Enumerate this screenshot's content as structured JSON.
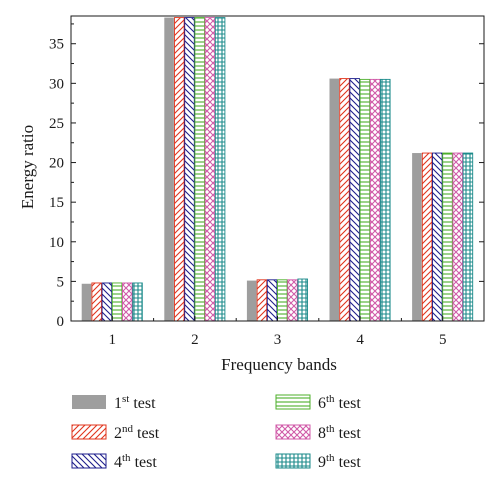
{
  "chart_data": {
    "type": "bar",
    "xlabel": "Frequency bands",
    "ylabel": "Energy ratio",
    "categories": [
      "1",
      "2",
      "3",
      "4",
      "5"
    ],
    "ylim": [
      0,
      38.5
    ],
    "yticks": [
      "0",
      "5",
      "10",
      "15",
      "20",
      "25",
      "30",
      "35"
    ],
    "legend_placement": "bottom, two columns",
    "series": [
      {
        "name": "1st test",
        "name_base": "1",
        "name_sup": "st",
        "name_suffix": " test",
        "pattern": "solid",
        "color": "#9e9e9e",
        "values": [
          4.7,
          38.3,
          5.1,
          30.6,
          21.2
        ]
      },
      {
        "name": "2nd test",
        "name_base": "2",
        "name_sup": "nd",
        "name_suffix": " test",
        "pattern": "diag-forward",
        "color": "#e0341c",
        "values": [
          4.8,
          38.3,
          5.2,
          30.6,
          21.2
        ]
      },
      {
        "name": "4th test",
        "name_base": "4",
        "name_sup": "th",
        "name_suffix": " test",
        "pattern": "diag-back",
        "color": "#1e1e8c",
        "values": [
          4.8,
          38.3,
          5.2,
          30.6,
          21.2
        ]
      },
      {
        "name": "6th test",
        "name_base": "6",
        "name_sup": "th",
        "name_suffix": " test",
        "pattern": "horizontal",
        "color": "#4caf2a",
        "values": [
          4.8,
          38.3,
          5.2,
          30.5,
          21.2
        ]
      },
      {
        "name": "8th test",
        "name_base": "8",
        "name_sup": "th",
        "name_suffix": " test",
        "pattern": "crosshatch",
        "color": "#d05aa8",
        "values": [
          4.8,
          38.3,
          5.2,
          30.5,
          21.2
        ]
      },
      {
        "name": "9th test",
        "name_base": "9",
        "name_sup": "th",
        "name_suffix": " test",
        "pattern": "grid",
        "color": "#1a8a8a",
        "values": [
          4.8,
          38.3,
          5.3,
          30.5,
          21.2
        ]
      }
    ]
  }
}
